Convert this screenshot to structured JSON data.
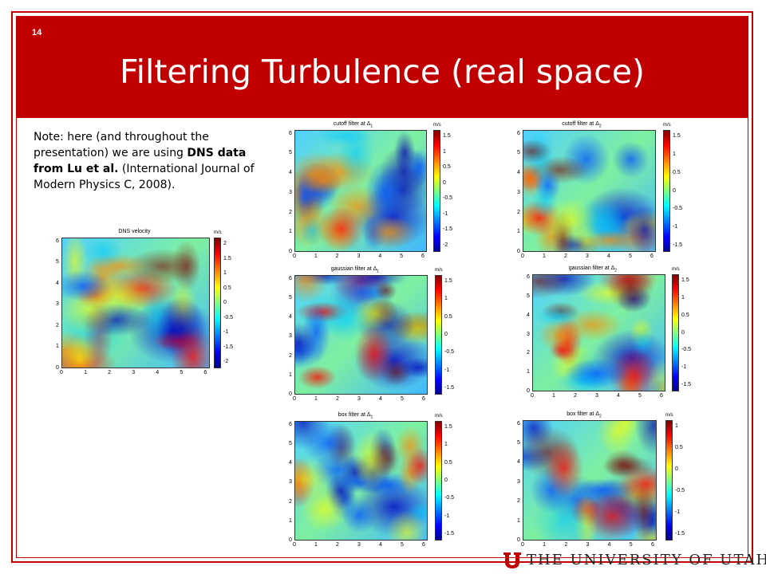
{
  "slide": {
    "number": "14",
    "title": "Filtering Turbulence (real space)"
  },
  "note": {
    "part1": "Note: here (and throughout the presentation) we are using ",
    "bold": "DNS data from Lu et al.",
    "part2": " (International Journal of Modern Physics C, 2008)."
  },
  "footer": {
    "logo_text": "THE UNIVERSITY OF UTAH"
  },
  "colors": {
    "header_red": "#c00000"
  },
  "chart_data": [
    {
      "type": "heatmap",
      "title": "DNS velocity",
      "unit": "m/s",
      "xticks": [
        "0",
        "1",
        "2",
        "3",
        "4",
        "5",
        "6"
      ],
      "yticks": [
        "0",
        "1",
        "2",
        "3",
        "4",
        "5",
        "6"
      ],
      "colorbar_ticks": [
        "2",
        "1.5",
        "1",
        "0.5",
        "0",
        "-0.5",
        "-1",
        "-1.5",
        "-2"
      ]
    },
    {
      "type": "heatmap",
      "title": "cutoff filter at Δ1",
      "unit": "m/s",
      "xticks": [
        "0",
        "1",
        "2",
        "3",
        "4",
        "5",
        "6"
      ],
      "yticks": [
        "0",
        "1",
        "2",
        "3",
        "4",
        "5",
        "6"
      ],
      "colorbar_ticks": [
        "1.5",
        "1",
        "0.5",
        "0",
        "-0.5",
        "-1",
        "-1.5",
        "-2"
      ]
    },
    {
      "type": "heatmap",
      "title": "cutoff filter at Δ2",
      "unit": "m/s",
      "xticks": [
        "0",
        "1",
        "2",
        "3",
        "4",
        "5",
        "6"
      ],
      "yticks": [
        "0",
        "1",
        "2",
        "3",
        "4",
        "5",
        "6"
      ],
      "colorbar_ticks": [
        "1.5",
        "1",
        "0.5",
        "0",
        "-0.5",
        "-1",
        "-1.5"
      ]
    },
    {
      "type": "heatmap",
      "title": "gaussian filter at Δ1",
      "unit": "m/s",
      "xticks": [
        "0",
        "1",
        "2",
        "3",
        "4",
        "5",
        "6"
      ],
      "yticks": [
        "0",
        "1",
        "2",
        "3",
        "4",
        "5",
        "6"
      ],
      "colorbar_ticks": [
        "1.5",
        "1",
        "0.5",
        "0",
        "-0.5",
        "-1",
        "-1.5"
      ]
    },
    {
      "type": "heatmap",
      "title": "gaussian filter at Δ2",
      "unit": "m/s",
      "xticks": [
        "0",
        "1",
        "2",
        "3",
        "4",
        "5",
        "6"
      ],
      "yticks": [
        "0",
        "1",
        "2",
        "3",
        "4",
        "5",
        "6"
      ],
      "colorbar_ticks": [
        "1.5",
        "1",
        "0.5",
        "0",
        "-0.5",
        "-1",
        "-1.5"
      ]
    },
    {
      "type": "heatmap",
      "title": "box filter at Δ1",
      "unit": "m/s",
      "xticks": [
        "0",
        "1",
        "2",
        "3",
        "4",
        "5",
        "6"
      ],
      "yticks": [
        "0",
        "1",
        "2",
        "3",
        "4",
        "5",
        "6"
      ],
      "colorbar_ticks": [
        "1.5",
        "1",
        "0.5",
        "0",
        "-0.5",
        "-1",
        "-1.5"
      ]
    },
    {
      "type": "heatmap",
      "title": "box filter at Δ2",
      "unit": "m/s",
      "xticks": [
        "0",
        "1",
        "2",
        "3",
        "4",
        "5",
        "6"
      ],
      "yticks": [
        "0",
        "1",
        "2",
        "3",
        "4",
        "5",
        "6"
      ],
      "colorbar_ticks": [
        "1",
        "0.5",
        "0",
        "-0.5",
        "-1",
        "-1.5"
      ]
    }
  ]
}
